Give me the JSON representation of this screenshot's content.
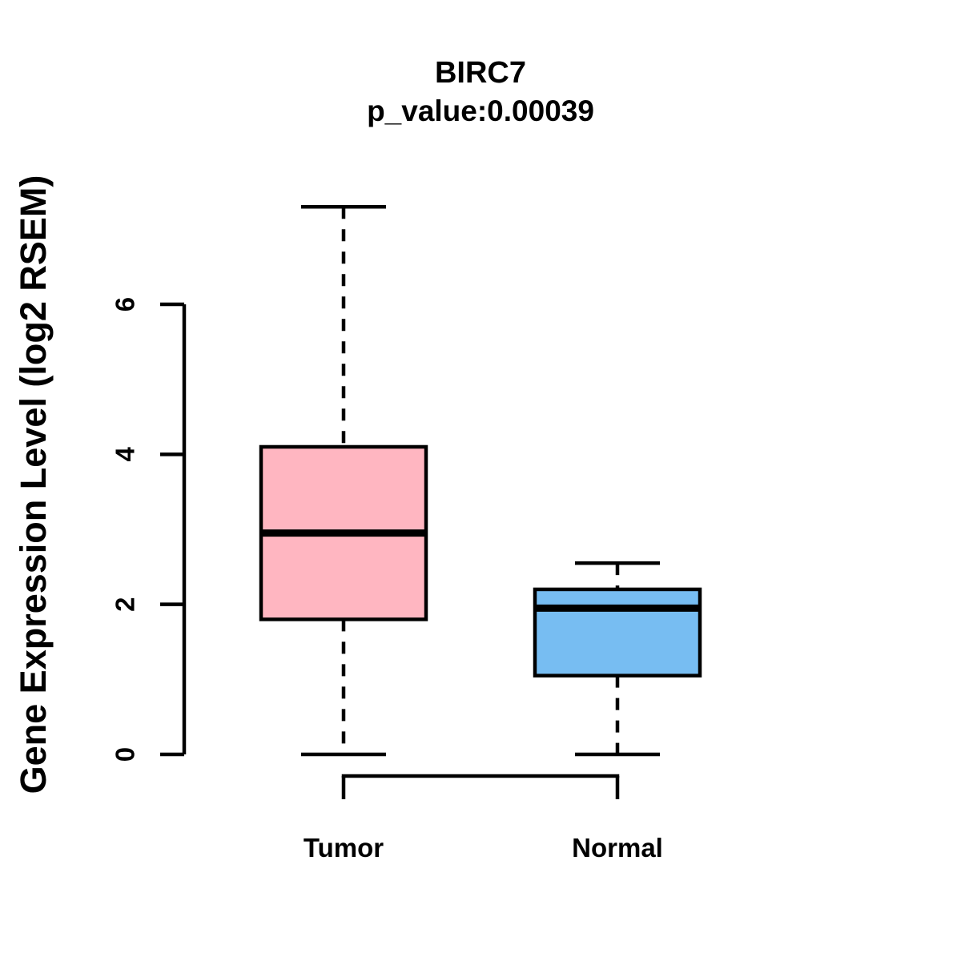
{
  "figure": {
    "background": "#ffffff",
    "text_color": "#000000"
  },
  "chart_data": {
    "type": "boxplot",
    "title": "BIRC7",
    "subtitle": "p_value:0.00039",
    "ylabel": "Gene Expression Level (log2 RSEM)",
    "xlabel": "",
    "categories": [
      "Tumor",
      "Normal"
    ],
    "yticks": [
      0,
      2,
      4,
      6
    ],
    "ylim": [
      0,
      7.4
    ],
    "grid": false,
    "legend": "none",
    "whisker_style": "dashed",
    "box_border_color": "#000000",
    "median_color": "#000000",
    "axis_color": "#000000",
    "series": [
      {
        "name": "Tumor",
        "fill": "#FFB6C1",
        "min": 0.0,
        "q1": 1.8,
        "median": 2.95,
        "q3": 4.1,
        "max": 7.3
      },
      {
        "name": "Normal",
        "fill": "#77BDF2",
        "min": 0.0,
        "q1": 1.05,
        "median": 1.95,
        "q3": 2.2,
        "max": 2.55
      }
    ]
  }
}
